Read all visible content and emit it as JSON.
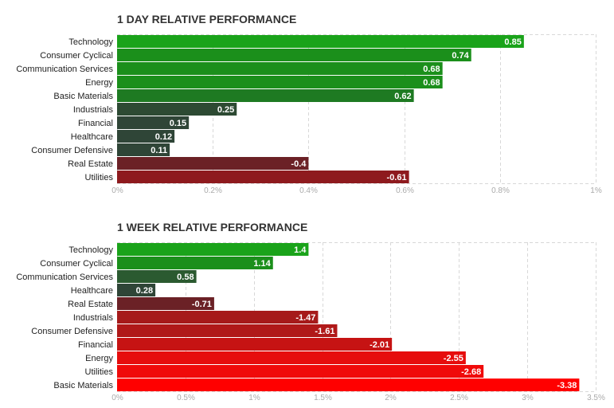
{
  "chart_data": [
    {
      "type": "bar",
      "orientation": "horizontal",
      "title": "1 DAY RELATIVE PERFORMANCE",
      "categories": [
        "Technology",
        "Consumer Cyclical",
        "Communication Services",
        "Energy",
        "Basic Materials",
        "Industrials",
        "Financial",
        "Healthcare",
        "Consumer Defensive",
        "Real Estate",
        "Utilities"
      ],
      "values": [
        0.85,
        0.74,
        0.68,
        0.68,
        0.62,
        0.25,
        0.15,
        0.12,
        0.11,
        -0.4,
        -0.61
      ],
      "value_labels": [
        "0.85",
        "0.74",
        "0.68",
        "0.68",
        "0.62",
        "0.25",
        "0.15",
        "0.12",
        "0.11",
        "-0.4",
        "-0.61"
      ],
      "xlim": [
        0,
        1
      ],
      "xticks": [
        0,
        0.2,
        0.4,
        0.6,
        0.8,
        1
      ],
      "xtick_labels": [
        "0%",
        "0.2%",
        "0.4%",
        "0.6%",
        "0.8%",
        "1%"
      ],
      "bar_magnitude": "absolute",
      "grid": true,
      "colors": [
        "#1aa31a",
        "#1b8f1b",
        "#1b8f1b",
        "#1b8f1b",
        "#1e7a22",
        "#2d4a33",
        "#2f4537",
        "#2f4537",
        "#2f4537",
        "#6b2126",
        "#8e1a1e"
      ]
    },
    {
      "type": "bar",
      "orientation": "horizontal",
      "title": "1 WEEK RELATIVE PERFORMANCE",
      "categories": [
        "Technology",
        "Consumer Cyclical",
        "Communication Services",
        "Healthcare",
        "Real Estate",
        "Industrials",
        "Consumer Defensive",
        "Financial",
        "Energy",
        "Utilities",
        "Basic Materials"
      ],
      "values": [
        1.4,
        1.14,
        0.58,
        0.28,
        -0.71,
        -1.47,
        -1.61,
        -2.01,
        -2.55,
        -2.68,
        -3.38
      ],
      "value_labels": [
        "1.4",
        "1.14",
        "0.58",
        "0.28",
        "-0.71",
        "-1.47",
        "-1.61",
        "-2.01",
        "-2.55",
        "-2.68",
        "-3.38"
      ],
      "xlim": [
        0,
        3.5
      ],
      "xticks": [
        0,
        0.5,
        1,
        1.5,
        2,
        2.5,
        3,
        3.5
      ],
      "xtick_labels": [
        "0%",
        "0.5%",
        "1%",
        "1.5%",
        "2%",
        "2.5%",
        "3%",
        "3.5%"
      ],
      "bar_magnitude": "absolute",
      "grid": true,
      "colors": [
        "#1aa31a",
        "#1b8f1b",
        "#2b5a30",
        "#2f4537",
        "#6b2126",
        "#a61a1a",
        "#b01919",
        "#c61313",
        "#e60d0d",
        "#f00a0a",
        "#ff0000"
      ]
    }
  ]
}
